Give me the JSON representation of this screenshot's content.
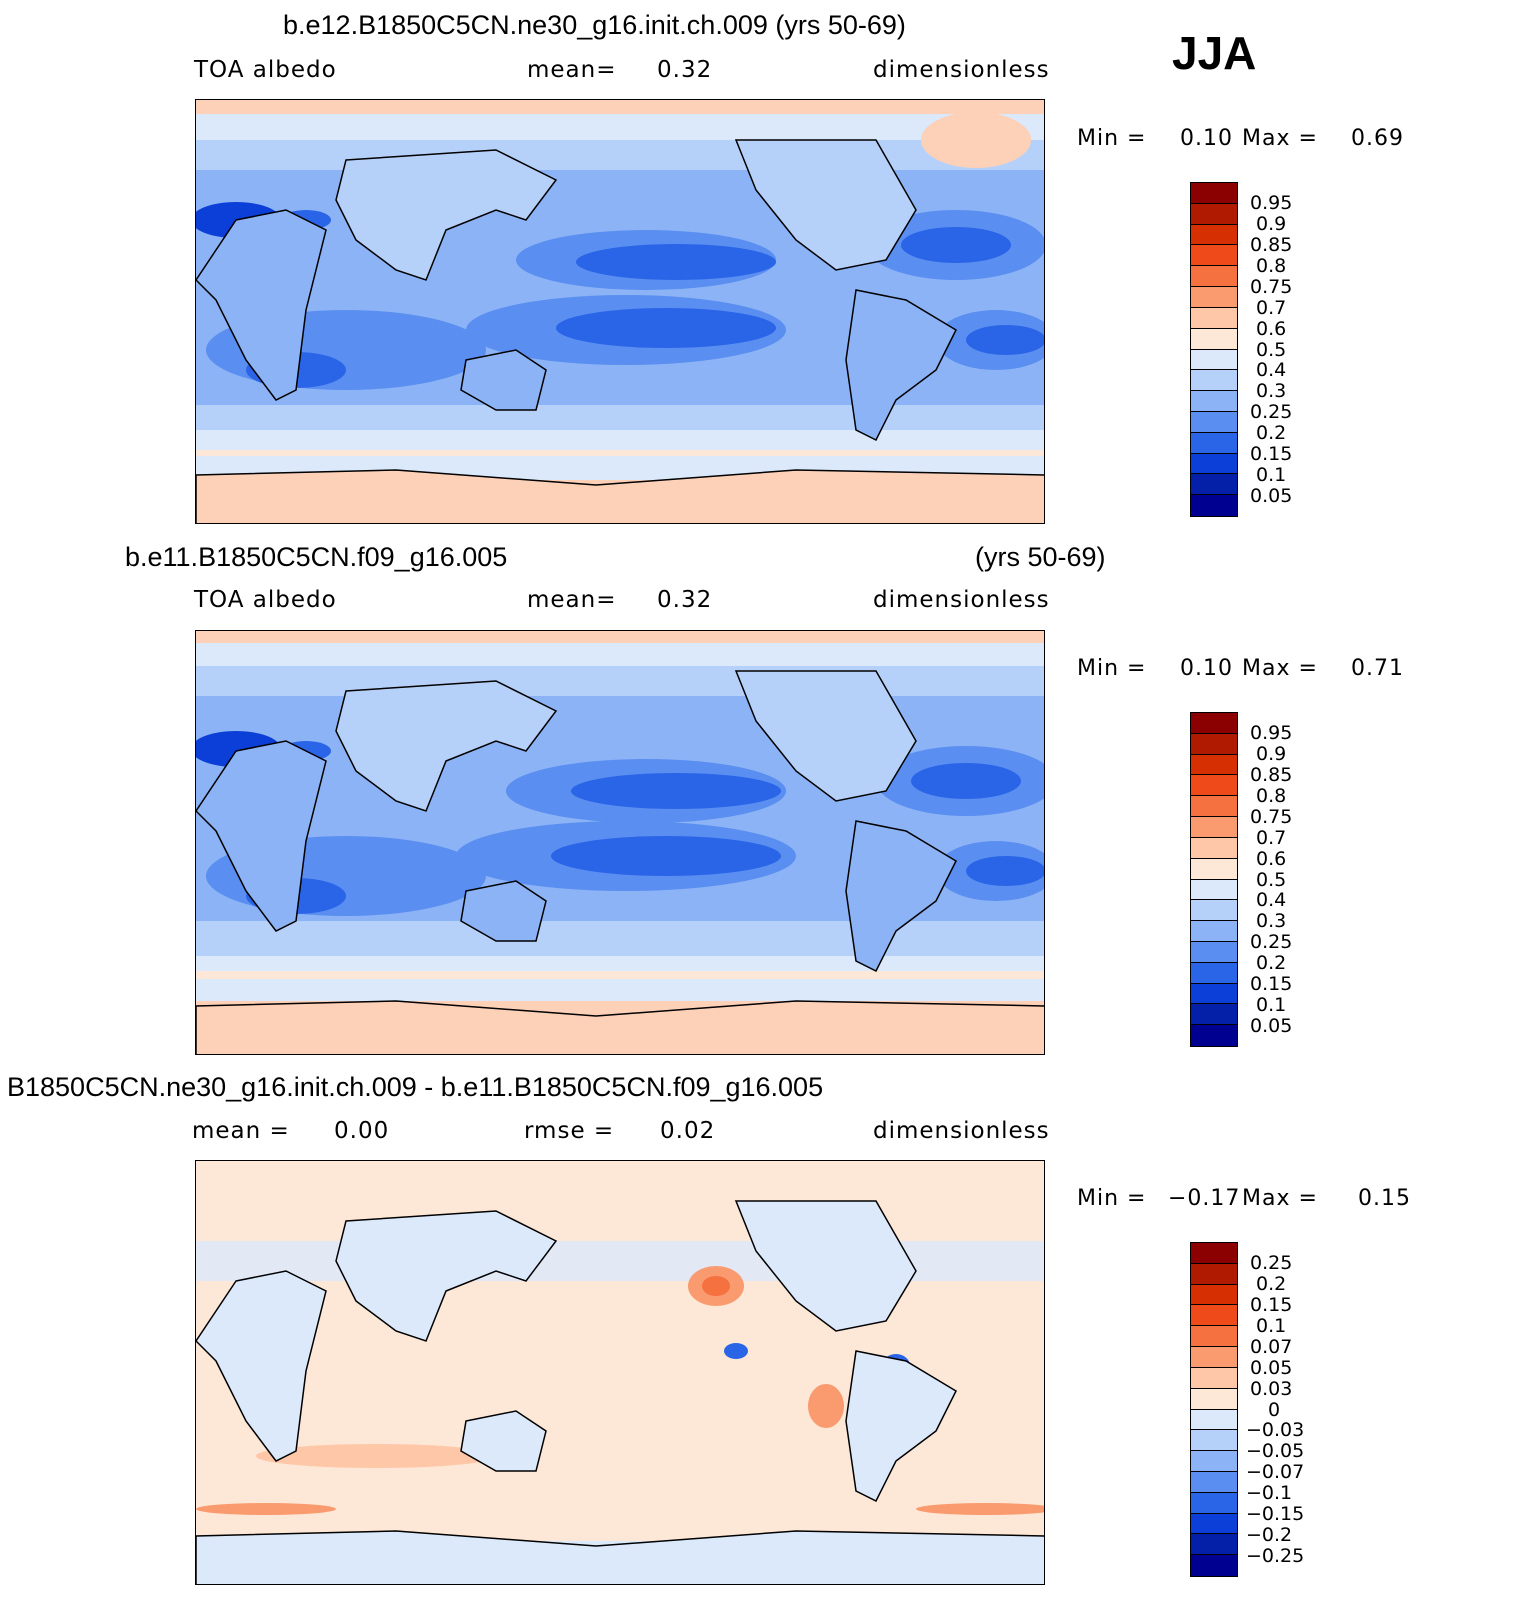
{
  "season": "JJA",
  "panels": [
    {
      "id": "top",
      "title": "b.e12.B1850C5CN.ne30_g16.init.ch.009 (yrs 50-69)",
      "left_label": "TOA  albedo",
      "mid_label": "mean=",
      "mid_value": "0.32",
      "units": "dimensionless",
      "min_label": "Min  =",
      "min_value": "0.10",
      "max_label": "Max  =",
      "max_value": "0.69"
    },
    {
      "id": "middle",
      "title_left": "b.e11.B1850C5CN.f09_g16.005",
      "title_right": "(yrs 50-69)",
      "left_label": "TOA  albedo",
      "mid_label": "mean=",
      "mid_value": "0.32",
      "units": "dimensionless",
      "min_label": "Min  =",
      "min_value": "0.10",
      "max_label": "Max  =",
      "max_value": "0.71"
    },
    {
      "id": "bottom",
      "title": "B1850C5CN.ne30_g16.init.ch.009 - b.e11.B1850C5CN.f09_g16.005",
      "left_label": "mean  =",
      "left_value": "0.00",
      "mid_label": "rmse  =",
      "mid_value": "0.02",
      "units": "dimensionless",
      "min_label": "Min  =",
      "min_value": "−0.17",
      "max_label": "Max  =",
      "max_value": "0.15"
    }
  ],
  "colorbar_abs": {
    "labels": [
      "0.95",
      "0.9",
      "0.85",
      "0.8",
      "0.75",
      "0.7",
      "0.6",
      "0.5",
      "0.4",
      "0.3",
      "0.25",
      "0.2",
      "0.15",
      "0.1",
      "0.05"
    ],
    "colors": [
      "#8b0000",
      "#b01a00",
      "#d62f02",
      "#ef4b1a",
      "#f5713f",
      "#f99a6f",
      "#fdc7a8",
      "#fde7d6",
      "#dbe9fb",
      "#b6d1f9",
      "#8cb3f5",
      "#5a8ef0",
      "#2a65e8",
      "#0b3fd8",
      "#0520a8",
      "#000090"
    ]
  },
  "colorbar_diff": {
    "labels": [
      "0.25",
      "0.2",
      "0.15",
      "0.1",
      "0.07",
      "0.05",
      "0.03",
      "0",
      "−0.03",
      "−0.05",
      "−0.07",
      "−0.1",
      "−0.15",
      "−0.2",
      "−0.25"
    ],
    "colors": [
      "#8b0000",
      "#b01a00",
      "#d62f02",
      "#ef4b1a",
      "#f5713f",
      "#f99a6f",
      "#fdc7a8",
      "#fde7d6",
      "#dbe9fb",
      "#b6d1f9",
      "#8cb3f5",
      "#5a8ef0",
      "#2a65e8",
      "#0b3fd8",
      "#0520a8",
      "#000090"
    ]
  }
}
